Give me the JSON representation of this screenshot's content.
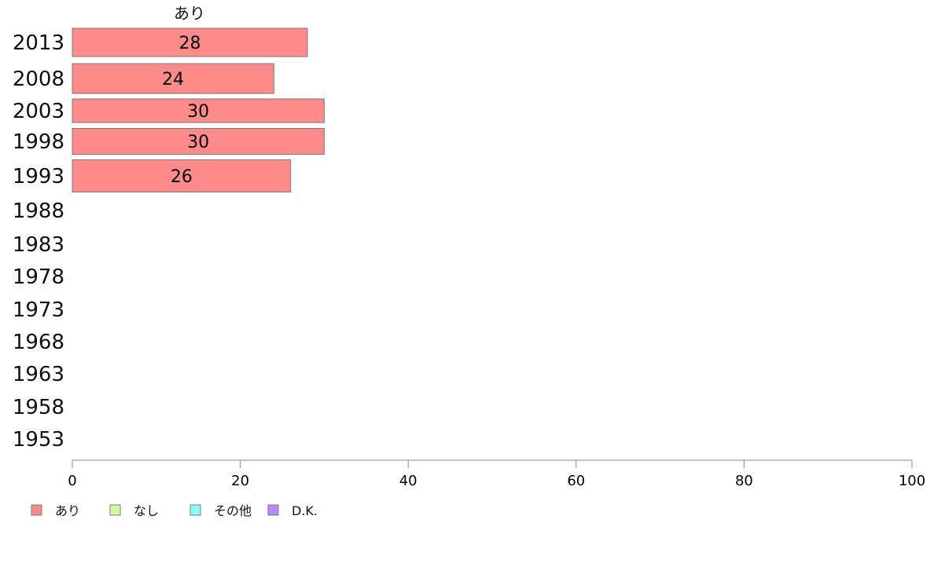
{
  "chart_data": {
    "type": "bar",
    "orientation": "horizontal",
    "stacked": true,
    "categories": [
      "2013",
      "2008",
      "2003",
      "1998",
      "1993",
      "1988",
      "1983",
      "1978",
      "1973",
      "1968",
      "1963",
      "1958",
      "1953"
    ],
    "series": [
      {
        "name": "あり",
        "color": "#ff8a8a",
        "values": [
          28,
          24,
          30,
          30,
          26,
          null,
          null,
          null,
          null,
          null,
          null,
          null,
          null
        ]
      },
      {
        "name": "なし",
        "color": "#ccff99",
        "values": [
          null,
          null,
          null,
          null,
          null,
          null,
          null,
          null,
          null,
          null,
          null,
          null,
          null
        ]
      },
      {
        "name": "その他",
        "color": "#88ffff",
        "values": [
          null,
          null,
          null,
          null,
          null,
          null,
          null,
          null,
          null,
          null,
          null,
          null,
          null
        ]
      },
      {
        "name": "D.K.",
        "color": "#bb88ff",
        "values": [
          null,
          null,
          null,
          null,
          null,
          null,
          null,
          null,
          null,
          null,
          null,
          null,
          null
        ]
      }
    ],
    "data_labels": [
      {
        "category": "2013",
        "text": "28"
      },
      {
        "category": "2008",
        "text": "24"
      },
      {
        "category": "2003",
        "text": "30"
      },
      {
        "category": "1998",
        "text": "30"
      },
      {
        "category": "1993",
        "text": "26"
      }
    ],
    "series_header": "あり",
    "xlim": [
      0,
      100
    ],
    "xticks": [
      "0",
      "20",
      "40",
      "60",
      "80",
      "100"
    ],
    "grid": false,
    "legend_position": "bottom-left",
    "bar_stroke_color": "#7a7a7a",
    "axis_color": "#888888"
  }
}
